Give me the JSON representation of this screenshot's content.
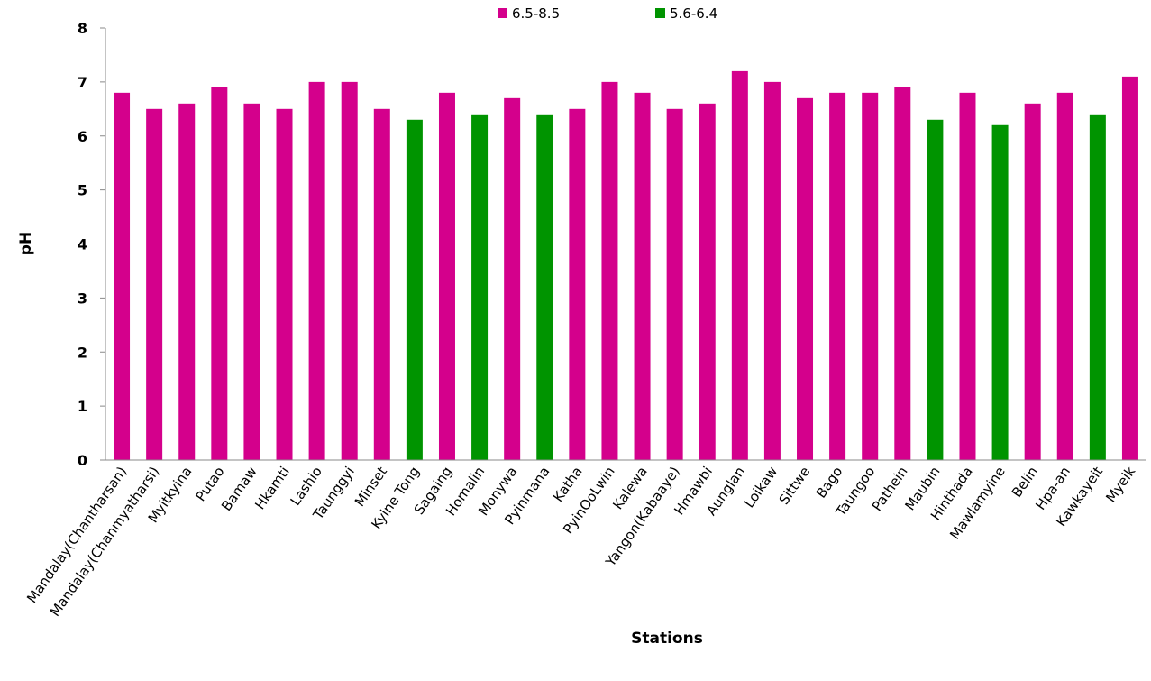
{
  "chart_data": {
    "type": "bar",
    "title": "",
    "xlabel": "Stations",
    "ylabel": "pH",
    "ylim": [
      0,
      8
    ],
    "yticks": [
      0,
      1,
      2,
      3,
      4,
      5,
      6,
      7,
      8
    ],
    "grid": false,
    "legend_position": "top",
    "legend": [
      {
        "label": "6.5-8.5",
        "color": "#D4008C"
      },
      {
        "label": "5.6-6.4",
        "color": "#009400"
      }
    ],
    "categories": [
      "Mandalay(Chantharsan)",
      "Mandalay(Chanmyatharsi)",
      "Myitkyina",
      "Putao",
      "Bamaw",
      "Hkamti",
      "Lashio",
      "Taunggyi",
      "Minset",
      "Kyine Tong",
      "Sagaing",
      "Homalin",
      "Monywa",
      "Pyinmana",
      "Katha",
      "PyinOoLwin",
      "Kalewa",
      "Yangon(Kabaaye)",
      "Hmawbi",
      "Aunglan",
      "Loikaw",
      "Sittwe",
      "Bago",
      "Taungoo",
      "Pathein",
      "Maubin",
      "Hinthada",
      "Mawlamyine",
      "Belin",
      "Hpa-an",
      "Kawkayeit",
      "Myeik"
    ],
    "values": [
      6.8,
      6.5,
      6.6,
      6.9,
      6.6,
      6.5,
      7.0,
      7.0,
      6.5,
      6.3,
      6.8,
      6.4,
      6.7,
      6.4,
      6.5,
      7.0,
      6.8,
      6.5,
      6.6,
      7.2,
      7.0,
      6.7,
      6.8,
      6.8,
      6.9,
      6.3,
      6.8,
      6.2,
      6.6,
      6.8,
      6.4,
      7.1
    ],
    "groups": [
      "6.5-8.5",
      "6.5-8.5",
      "6.5-8.5",
      "6.5-8.5",
      "6.5-8.5",
      "6.5-8.5",
      "6.5-8.5",
      "6.5-8.5",
      "6.5-8.5",
      "5.6-6.4",
      "6.5-8.5",
      "5.6-6.4",
      "6.5-8.5",
      "5.6-6.4",
      "6.5-8.5",
      "6.5-8.5",
      "6.5-8.5",
      "6.5-8.5",
      "6.5-8.5",
      "6.5-8.5",
      "6.5-8.5",
      "6.5-8.5",
      "6.5-8.5",
      "6.5-8.5",
      "6.5-8.5",
      "5.6-6.4",
      "6.5-8.5",
      "5.6-6.4",
      "6.5-8.5",
      "6.5-8.5",
      "5.6-6.4",
      "6.5-8.5"
    ]
  }
}
